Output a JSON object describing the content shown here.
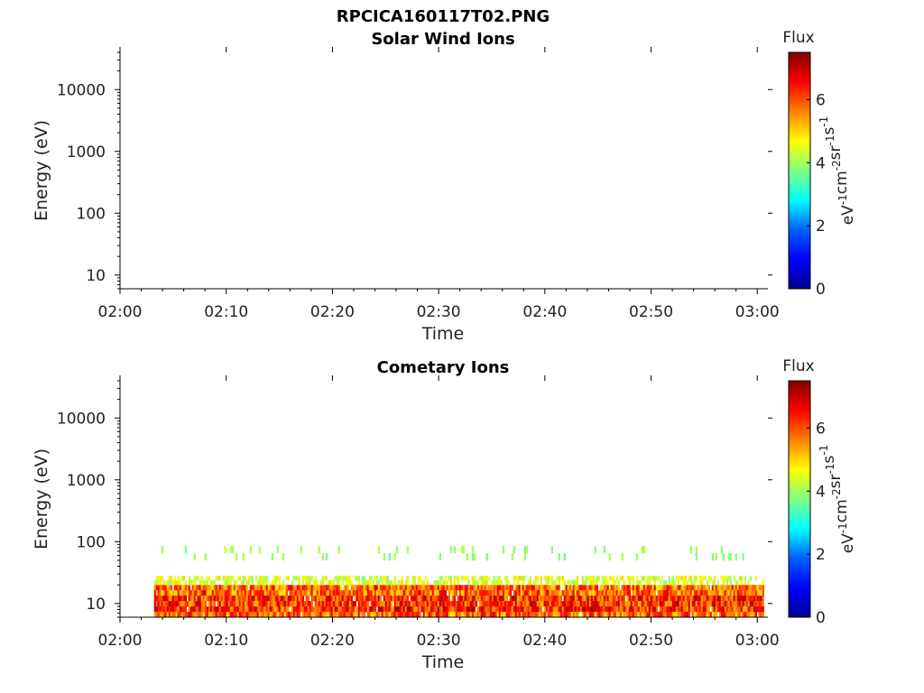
{
  "figure": {
    "title": "RPCICA160117T02.PNG"
  },
  "colormap": [
    "#00008f",
    "#0000ff",
    "#0080ff",
    "#00ffff",
    "#80ff80",
    "#ffff00",
    "#ff8000",
    "#ff0000",
    "#800000"
  ],
  "chart_data": [
    {
      "type": "heatmap",
      "title": "Solar Wind Ions",
      "xlabel": "Time",
      "ylabel": "Energy (eV)",
      "x_ticks": [
        "02:00",
        "02:10",
        "02:20",
        "02:30",
        "02:40",
        "02:50",
        "03:00"
      ],
      "y_scale": "log",
      "y_ticks": [
        "10",
        "100",
        "1000",
        "10000"
      ],
      "ylim": [
        6,
        40000
      ],
      "colorbar": {
        "title": "Flux",
        "label": "eV-1cm-2sr-1s-1",
        "ticks": [
          "0",
          "2",
          "4",
          "6"
        ],
        "range": [
          0,
          7.5
        ]
      },
      "data_present": false,
      "bands": []
    },
    {
      "type": "heatmap",
      "title": "Cometary Ions",
      "xlabel": "Time",
      "ylabel": "Energy (eV)",
      "x_ticks": [
        "02:00",
        "02:10",
        "02:20",
        "02:30",
        "02:40",
        "02:50",
        "03:00"
      ],
      "y_scale": "log",
      "y_ticks": [
        "10",
        "100",
        "1000",
        "10000"
      ],
      "ylim": [
        6,
        40000
      ],
      "colorbar": {
        "title": "Flux",
        "label": "eV-1cm-2sr-1s-1",
        "ticks": [
          "0",
          "2",
          "4",
          "6"
        ],
        "range": [
          0,
          7.5
        ]
      },
      "data_present": true,
      "data_start_minute": 3.2,
      "data_end_minute": 60.6,
      "bands": [
        {
          "energy_low": 6,
          "energy_high": 20,
          "flux_range": [
            4.8,
            6.8
          ]
        },
        {
          "energy_low": 20,
          "energy_high": 28,
          "flux_range": [
            3.8,
            5.0
          ]
        },
        {
          "energy_low": 50,
          "energy_high": 85,
          "flux_range": [
            3.6,
            4.2
          ]
        }
      ]
    }
  ]
}
